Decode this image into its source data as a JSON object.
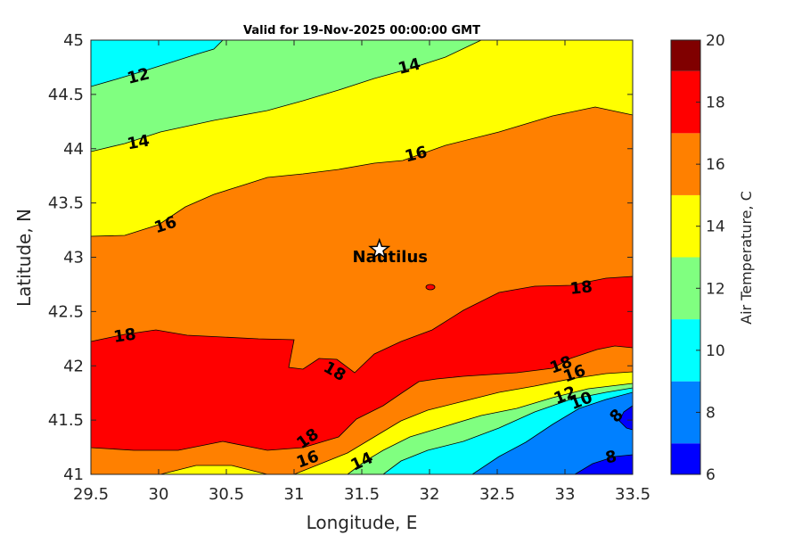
{
  "chart_data": {
    "type": "contourf",
    "title": "Valid for 19-Nov-2025 00:00:00 GMT",
    "xlabel": "Longitude, E",
    "ylabel": "Latitude, N",
    "xlim": [
      29.5,
      33.5
    ],
    "ylim": [
      41,
      45
    ],
    "xticks": [
      29.5,
      30,
      30.5,
      31,
      31.5,
      32,
      32.5,
      33,
      33.5
    ],
    "yticks": [
      41,
      41.5,
      42,
      42.5,
      43,
      43.5,
      44,
      44.5,
      45
    ],
    "colorbar": {
      "label": "Air Temperature, C",
      "min": 6,
      "max": 20,
      "ticks": [
        6,
        8,
        10,
        12,
        14,
        16,
        18,
        20
      ],
      "bands": [
        {
          "from": 6,
          "to": 7,
          "color": "#0000ff"
        },
        {
          "from": 7,
          "to": 9,
          "color": "#0080ff"
        },
        {
          "from": 9,
          "to": 11,
          "color": "#00ffff"
        },
        {
          "from": 11,
          "to": 13,
          "color": "#80ff80"
        },
        {
          "from": 13,
          "to": 15,
          "color": "#ffff00"
        },
        {
          "from": 15,
          "to": 17,
          "color": "#ff8000"
        },
        {
          "from": 17,
          "to": 19,
          "color": "#ff0000"
        },
        {
          "from": 19,
          "to": 20,
          "color": "#800000"
        }
      ]
    },
    "contour_labels": [
      {
        "text": "12",
        "lon": 29.85,
        "lat": 44.67,
        "angle": -14
      },
      {
        "text": "14",
        "lon": 31.85,
        "lat": 44.76,
        "angle": -14
      },
      {
        "text": "14",
        "lon": 29.85,
        "lat": 44.06,
        "angle": -10
      },
      {
        "text": "16",
        "lon": 31.9,
        "lat": 43.95,
        "angle": -14
      },
      {
        "text": "16",
        "lon": 30.05,
        "lat": 43.3,
        "angle": -18
      },
      {
        "text": "18",
        "lon": 33.12,
        "lat": 42.72,
        "angle": -6
      },
      {
        "text": "18",
        "lon": 29.75,
        "lat": 42.28,
        "angle": -8
      },
      {
        "text": "18",
        "lon": 31.3,
        "lat": 41.95,
        "angle": 30
      },
      {
        "text": "18",
        "lon": 32.97,
        "lat": 42.01,
        "angle": -20
      },
      {
        "text": "16",
        "lon": 33.07,
        "lat": 41.93,
        "angle": -20
      },
      {
        "text": "12",
        "lon": 33.0,
        "lat": 41.73,
        "angle": -22
      },
      {
        "text": "10",
        "lon": 33.12,
        "lat": 41.68,
        "angle": -22
      },
      {
        "text": "18",
        "lon": 31.1,
        "lat": 41.33,
        "angle": -35
      },
      {
        "text": "16",
        "lon": 31.1,
        "lat": 41.14,
        "angle": -20
      },
      {
        "text": "14",
        "lon": 31.5,
        "lat": 41.12,
        "angle": -25
      },
      {
        "text": "8",
        "lon": 33.38,
        "lat": 41.54,
        "angle": -45
      },
      {
        "text": "8",
        "lon": 33.34,
        "lat": 41.16,
        "angle": -10
      }
    ],
    "site": {
      "name": "Nautilus",
      "lon": 31.63,
      "lat": 43.07
    }
  }
}
